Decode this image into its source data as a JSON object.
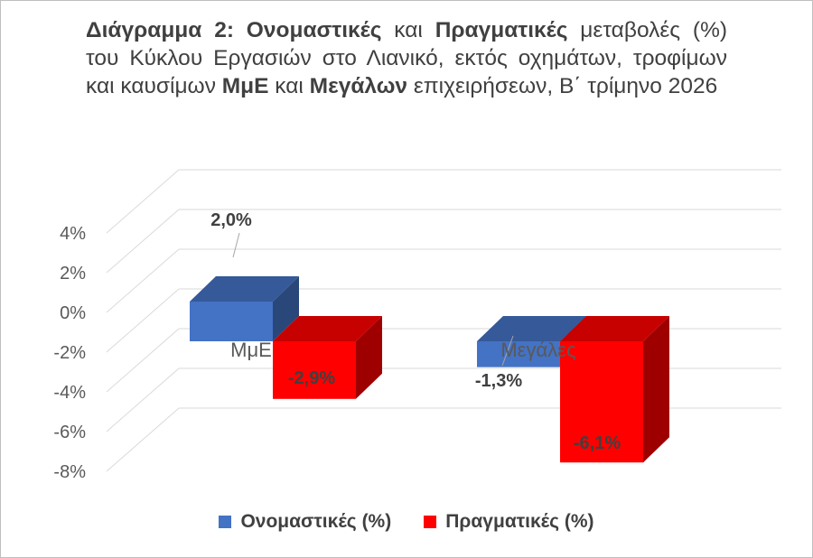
{
  "title": {
    "segments": [
      {
        "text": "Διάγραμμα 2: Ονομαστικές",
        "bold": true
      },
      {
        "text": " και ",
        "bold": false
      },
      {
        "text": "Πραγματικές",
        "bold": true
      },
      {
        "text": " μεταβολές (%) του Κύκλου Εργασιών στο Λιανικό, εκτός οχημάτων, τροφίμων και καυσίμων ",
        "bold": false
      },
      {
        "text": "ΜμΕ",
        "bold": true
      },
      {
        "text": " και ",
        "bold": false
      },
      {
        "text": "Μεγάλων",
        "bold": true
      },
      {
        "text": " επιχειρήσεων, Β΄ τρίμηνο 2026",
        "bold": false
      }
    ]
  },
  "chart_data": {
    "type": "bar",
    "three_d": true,
    "categories": [
      "ΜμΕ",
      "Μεγάλες"
    ],
    "series": [
      {
        "name": "Ονομαστικές (%)",
        "values": [
          2.0,
          -1.3
        ],
        "labels": [
          "2,0%",
          "-1,3%"
        ],
        "color": "#4472C4"
      },
      {
        "name": "Πραγματικές (%)",
        "values": [
          -2.9,
          -6.1
        ],
        "labels": [
          "-2,9%",
          "-6,1%"
        ],
        "color": "#FF0000"
      }
    ],
    "y_ticks": [
      4,
      2,
      0,
      -2,
      -4,
      -6,
      -8
    ],
    "y_tick_labels": [
      "4%",
      "2%",
      "0%",
      "-2%",
      "-4%",
      "-6%",
      "-8%"
    ],
    "ylim": [
      -8,
      4
    ],
    "grid": true,
    "legend_position": "bottom"
  }
}
